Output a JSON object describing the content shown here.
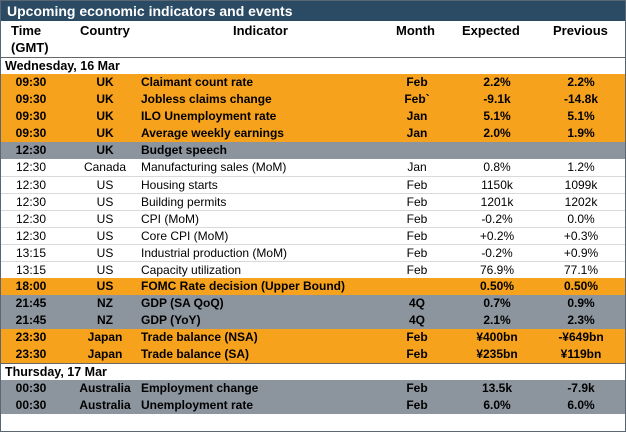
{
  "title": "Upcoming economic indicators and events",
  "headers": {
    "time": "Time",
    "time_sub": "(GMT)",
    "country": "Country",
    "indicator": "Indicator",
    "month": "Month",
    "expected": "Expected",
    "previous": "Previous"
  },
  "colors": {
    "title_bg": "#2b4a63",
    "highlight_orange": "#f7a21d",
    "highlight_gray": "#8c959e"
  },
  "rows": [
    {
      "type": "section",
      "label": "Wednesday, 16 Mar"
    },
    {
      "type": "orange",
      "time": "09:30",
      "country": "UK",
      "indicator": "Claimant count rate",
      "month": "Feb",
      "expected": "2.2%",
      "previous": "2.2%"
    },
    {
      "type": "orange",
      "time": "09:30",
      "country": "UK",
      "indicator": "Jobless claims change",
      "month": "Feb`",
      "expected": "-9.1k",
      "previous": "-14.8k"
    },
    {
      "type": "orange",
      "time": "09:30",
      "country": "UK",
      "indicator": "ILO Unemployment rate",
      "month": "Jan",
      "expected": "5.1%",
      "previous": "5.1%"
    },
    {
      "type": "orange",
      "time": "09:30",
      "country": "UK",
      "indicator": "Average weekly earnings",
      "month": "Jan",
      "expected": "2.0%",
      "previous": "1.9%"
    },
    {
      "type": "gray",
      "time": "12:30",
      "country": "UK",
      "indicator": "Budget speech",
      "month": "",
      "expected": "",
      "previous": ""
    },
    {
      "type": "white",
      "time": "12:30",
      "country": "Canada",
      "indicator": "Manufacturing sales (MoM)",
      "month": "Jan",
      "expected": "0.8%",
      "previous": "1.2%"
    },
    {
      "type": "white",
      "time": "12:30",
      "country": "US",
      "indicator": "Housing starts",
      "month": "Feb",
      "expected": "1150k",
      "previous": "1099k"
    },
    {
      "type": "white",
      "time": "12:30",
      "country": "US",
      "indicator": "Building permits",
      "month": "Feb",
      "expected": "1201k",
      "previous": "1202k"
    },
    {
      "type": "white",
      "time": "12:30",
      "country": "US",
      "indicator": "CPI (MoM)",
      "month": "Feb",
      "expected": "-0.2%",
      "previous": "0.0%"
    },
    {
      "type": "white",
      "time": "12:30",
      "country": "US",
      "indicator": "Core CPI (MoM)",
      "month": "Feb",
      "expected": "+0.2%",
      "previous": "+0.3%"
    },
    {
      "type": "white",
      "time": "13:15",
      "country": "US",
      "indicator": "Industrial production (MoM)",
      "month": "Feb",
      "expected": "-0.2%",
      "previous": "+0.9%"
    },
    {
      "type": "white",
      "time": "13:15",
      "country": "US",
      "indicator": "Capacity utilization",
      "month": "Feb",
      "expected": "76.9%",
      "previous": "77.1%"
    },
    {
      "type": "orange",
      "time": "18:00",
      "country": "US",
      "indicator": "FOMC Rate decision (Upper Bound)",
      "month": "",
      "expected": "0.50%",
      "previous": "0.50%"
    },
    {
      "type": "gray",
      "time": "21:45",
      "country": "NZ",
      "indicator": "GDP  (SA QoQ)",
      "month": "4Q",
      "expected": "0.7%",
      "previous": "0.9%"
    },
    {
      "type": "gray",
      "time": "21:45",
      "country": "NZ",
      "indicator": "GDP (YoY)",
      "month": "4Q",
      "expected": "2.1%",
      "previous": "2.3%"
    },
    {
      "type": "orange",
      "time": "23:30",
      "country": "Japan",
      "indicator": "Trade balance (NSA)",
      "month": "Feb",
      "expected": "¥400bn",
      "previous": "-¥649bn"
    },
    {
      "type": "orange",
      "time": "23:30",
      "country": "Japan",
      "indicator": "Trade balance (SA)",
      "month": "Feb",
      "expected": "¥235bn",
      "previous": "¥119bn"
    },
    {
      "type": "section",
      "label": "Thursday, 17 Mar"
    },
    {
      "type": "gray",
      "time": "00:30",
      "country": "Australia",
      "indicator": "Employment change",
      "month": "Feb",
      "expected": "13.5k",
      "previous": "-7.9k"
    },
    {
      "type": "gray",
      "time": "00:30",
      "country": "Australia",
      "indicator": "Unemployment rate",
      "month": "Feb",
      "expected": "6.0%",
      "previous": "6.0%"
    }
  ]
}
